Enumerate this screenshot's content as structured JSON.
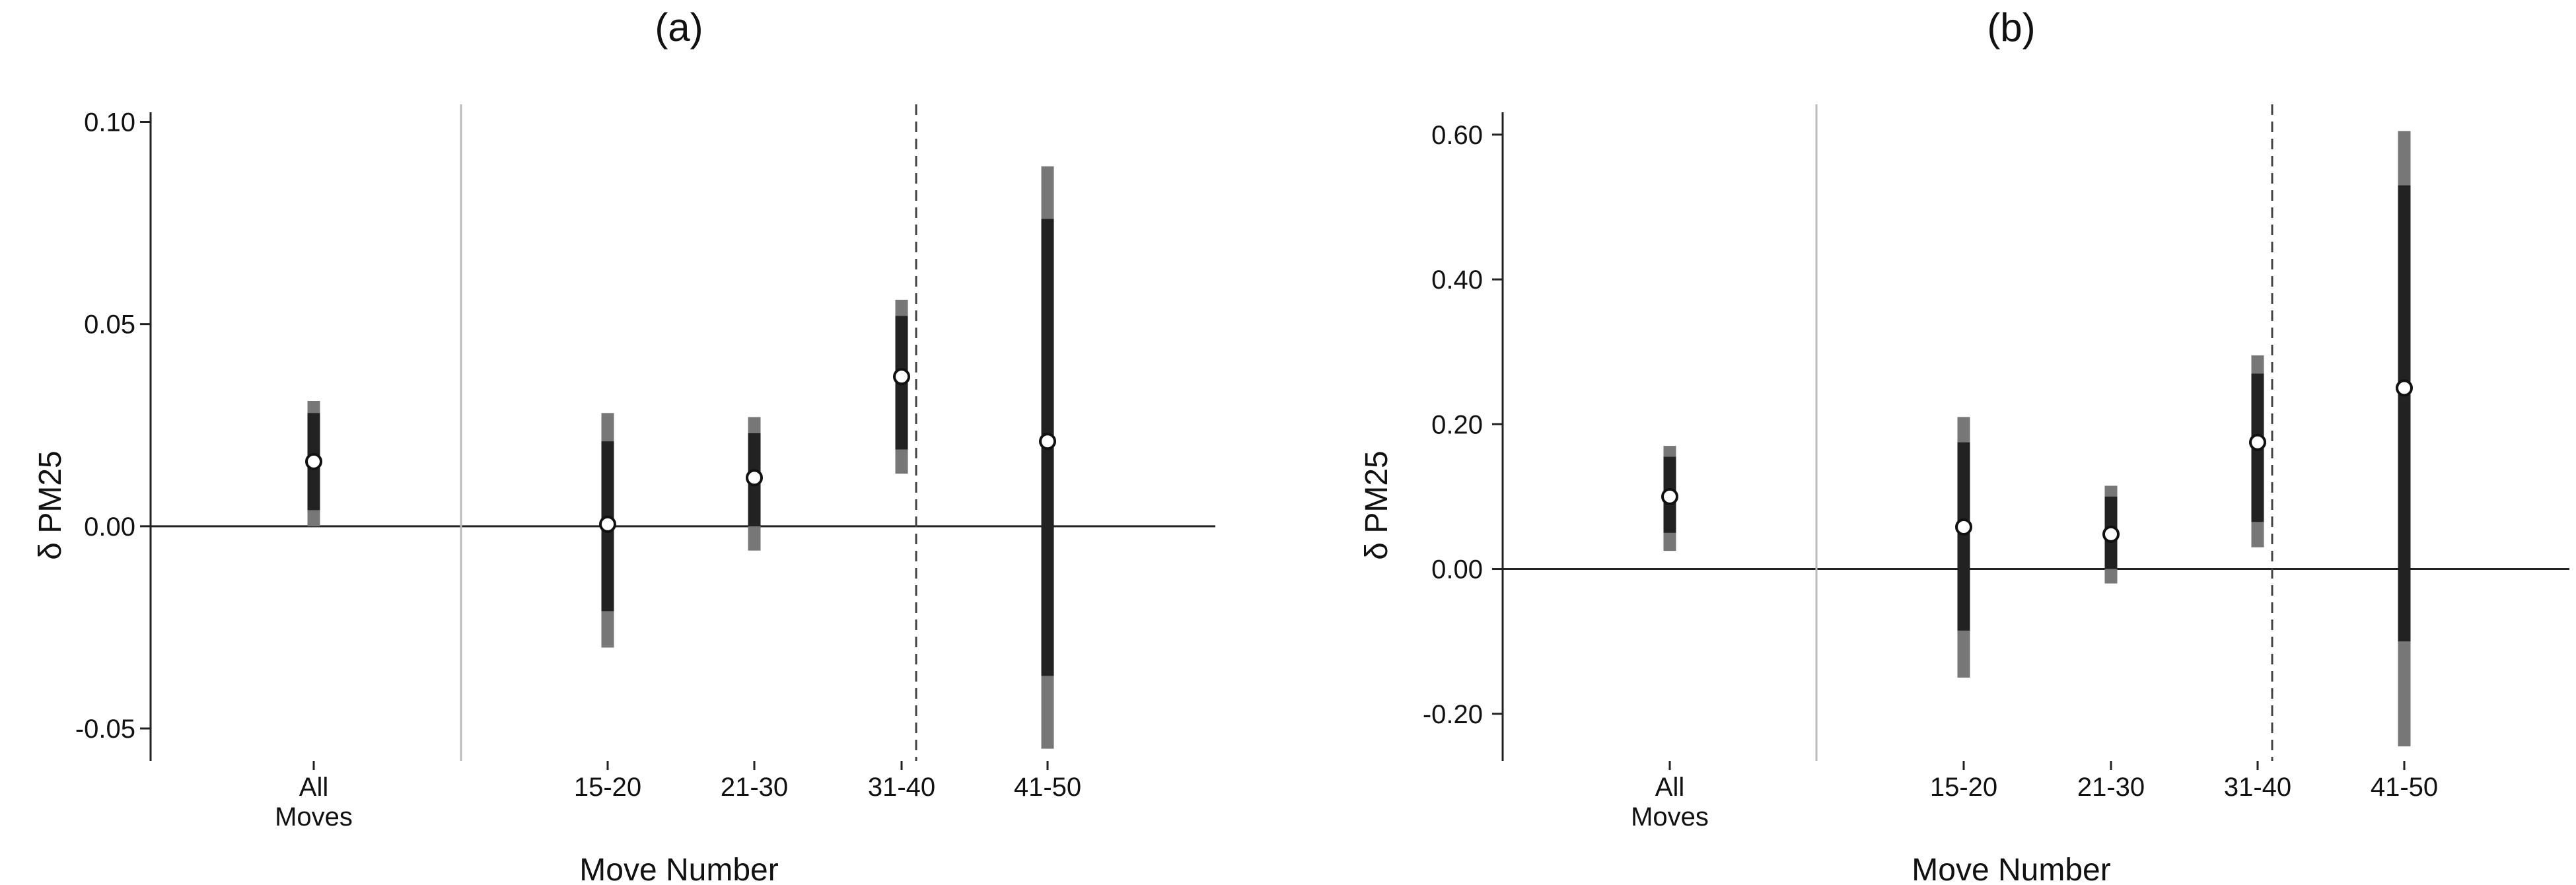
{
  "figure": {
    "panels": [
      "(a)",
      "(b)"
    ]
  },
  "chart_data": [
    {
      "type": "scatter",
      "title": "(a)",
      "xlabel": "Move Number",
      "ylabel": "δ PM25",
      "ylim": [
        -0.058,
        0.104
      ],
      "yticks": [
        -0.05,
        0.0,
        0.05,
        0.1
      ],
      "ytick_labels": [
        "-0.05",
        "0.00",
        "0.05",
        "0.10"
      ],
      "categories": [
        [
          "All",
          "Moves"
        ],
        [
          "15-20"
        ],
        [
          "21-30"
        ],
        [
          "31-40"
        ],
        [
          "41-50"
        ]
      ],
      "points": [
        {
          "category": "All Moves",
          "estimate": 0.016,
          "ci_inner": [
            0.004,
            0.028
          ],
          "ci_outer": [
            0.0,
            0.031
          ]
        },
        {
          "category": "15-20",
          "estimate": 0.0005,
          "ci_inner": [
            -0.021,
            0.021
          ],
          "ci_outer": [
            -0.03,
            0.028
          ]
        },
        {
          "category": "21-30",
          "estimate": 0.012,
          "ci_inner": [
            0.0,
            0.023
          ],
          "ci_outer": [
            -0.006,
            0.027
          ]
        },
        {
          "category": "31-40",
          "estimate": 0.037,
          "ci_inner": [
            0.019,
            0.052
          ],
          "ci_outer": [
            0.013,
            0.056
          ]
        },
        {
          "category": "41-50",
          "estimate": 0.021,
          "ci_inner": [
            -0.037,
            0.076
          ],
          "ci_outer": [
            -0.055,
            0.089
          ]
        }
      ],
      "zero_line": 0,
      "separator_after": "All Moves",
      "dashed_line_near": "31-40",
      "colors": {
        "inner": "#222222",
        "outer": "#777777",
        "marker_fill": "#ffffff",
        "separator": "#bbbbbb"
      }
    },
    {
      "type": "scatter",
      "title": "(b)",
      "xlabel": "Move Number",
      "ylabel": "δ PM25",
      "ylim": [
        -0.265,
        0.64
      ],
      "yticks": [
        -0.2,
        0.0,
        0.2,
        0.4,
        0.6
      ],
      "ytick_labels": [
        "-0.20",
        "0.00",
        "0.20",
        "0.40",
        "0.60"
      ],
      "categories": [
        [
          "All",
          "Moves"
        ],
        [
          "15-20"
        ],
        [
          "21-30"
        ],
        [
          "31-40"
        ],
        [
          "41-50"
        ]
      ],
      "points": [
        {
          "category": "All Moves",
          "estimate": 0.1,
          "ci_inner": [
            0.05,
            0.155
          ],
          "ci_outer": [
            0.025,
            0.17
          ]
        },
        {
          "category": "15-20",
          "estimate": 0.058,
          "ci_inner": [
            -0.085,
            0.175
          ],
          "ci_outer": [
            -0.15,
            0.21
          ]
        },
        {
          "category": "21-30",
          "estimate": 0.048,
          "ci_inner": [
            0.0,
            0.1
          ],
          "ci_outer": [
            -0.02,
            0.115
          ]
        },
        {
          "category": "31-40",
          "estimate": 0.175,
          "ci_inner": [
            0.065,
            0.27
          ],
          "ci_outer": [
            0.03,
            0.295
          ]
        },
        {
          "category": "41-50",
          "estimate": 0.25,
          "ci_inner": [
            -0.1,
            0.53
          ],
          "ci_outer": [
            -0.245,
            0.605
          ]
        }
      ],
      "zero_line": 0,
      "separator_after": "All Moves",
      "dashed_line_near": "31-40",
      "colors": {
        "inner": "#222222",
        "outer": "#777777",
        "marker_fill": "#ffffff",
        "separator": "#bbbbbb"
      }
    }
  ]
}
